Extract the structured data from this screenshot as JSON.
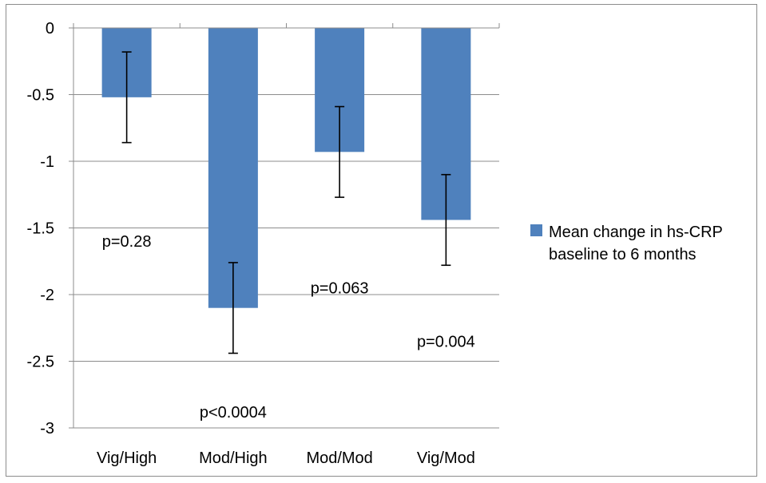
{
  "chart_data": {
    "type": "bar",
    "categories": [
      "Vig/High",
      "Mod/High",
      "Mod/Mod",
      "Vig/Mod"
    ],
    "series": [
      {
        "name": "Mean change in hs-CRP baseline to 6 months",
        "values": [
          -0.52,
          -2.1,
          -0.93,
          -1.44
        ],
        "error_low": [
          -0.86,
          -2.44,
          -1.27,
          -1.78
        ],
        "error_high": [
          -0.18,
          -1.76,
          -0.59,
          -1.1
        ],
        "color": "#4F81BD"
      }
    ],
    "annotations": [
      {
        "text": "p=0.28",
        "x": "Vig/High",
        "y": -1.6
      },
      {
        "text": "p<0.0004",
        "x": "Mod/High",
        "y": -2.88
      },
      {
        "text": "p=0.063",
        "x": "Mod/Mod",
        "y": -1.95
      },
      {
        "text": "p=0.004",
        "x": "Vig/Mod",
        "y": -2.35
      }
    ],
    "yticks": [
      "0",
      "-0.5",
      "-1",
      "-1.5",
      "-2",
      "-2.5",
      "-3"
    ],
    "ylim": [
      -3,
      0
    ],
    "grid": true,
    "legend_position": "right",
    "legend_lines": [
      "Mean change in hs-CRP",
      "baseline to 6 months"
    ]
  }
}
